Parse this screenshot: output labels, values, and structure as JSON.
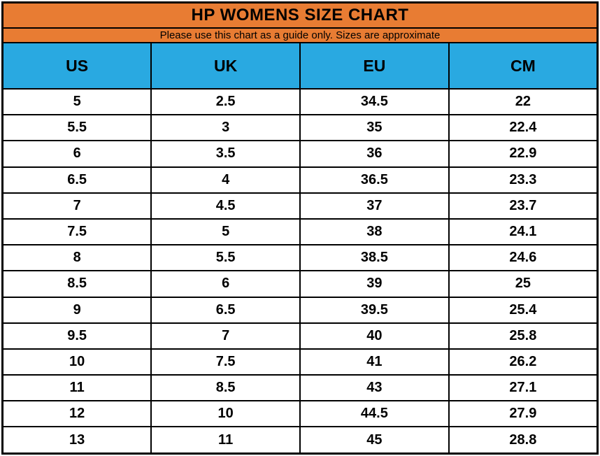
{
  "header": {
    "title": "HP WOMENS SIZE CHART",
    "subtitle": "Please use this chart as a guide only. Sizes are approximate"
  },
  "table": {
    "columns": [
      "US",
      "UK",
      "EU",
      "CM"
    ],
    "rows": [
      [
        "5",
        "2.5",
        "34.5",
        "22"
      ],
      [
        "5.5",
        "3",
        "35",
        "22.4"
      ],
      [
        "6",
        "3.5",
        "36",
        "22.9"
      ],
      [
        "6.5",
        "4",
        "36.5",
        "23.3"
      ],
      [
        "7",
        "4.5",
        "37",
        "23.7"
      ],
      [
        "7.5",
        "5",
        "38",
        "24.1"
      ],
      [
        "8",
        "5.5",
        "38.5",
        "24.6"
      ],
      [
        "8.5",
        "6",
        "39",
        "25"
      ],
      [
        "9",
        "6.5",
        "39.5",
        "25.4"
      ],
      [
        "9.5",
        "7",
        "40",
        "25.8"
      ],
      [
        "10",
        "7.5",
        "41",
        "26.2"
      ],
      [
        "11",
        "8.5",
        "43",
        "27.1"
      ],
      [
        "12",
        "10",
        "44.5",
        "27.9"
      ],
      [
        "13",
        "11",
        "45",
        "28.8"
      ]
    ]
  },
  "colors": {
    "header_orange": "#E87C33",
    "column_header_blue": "#29A9E1",
    "grid_black": "#000000"
  }
}
